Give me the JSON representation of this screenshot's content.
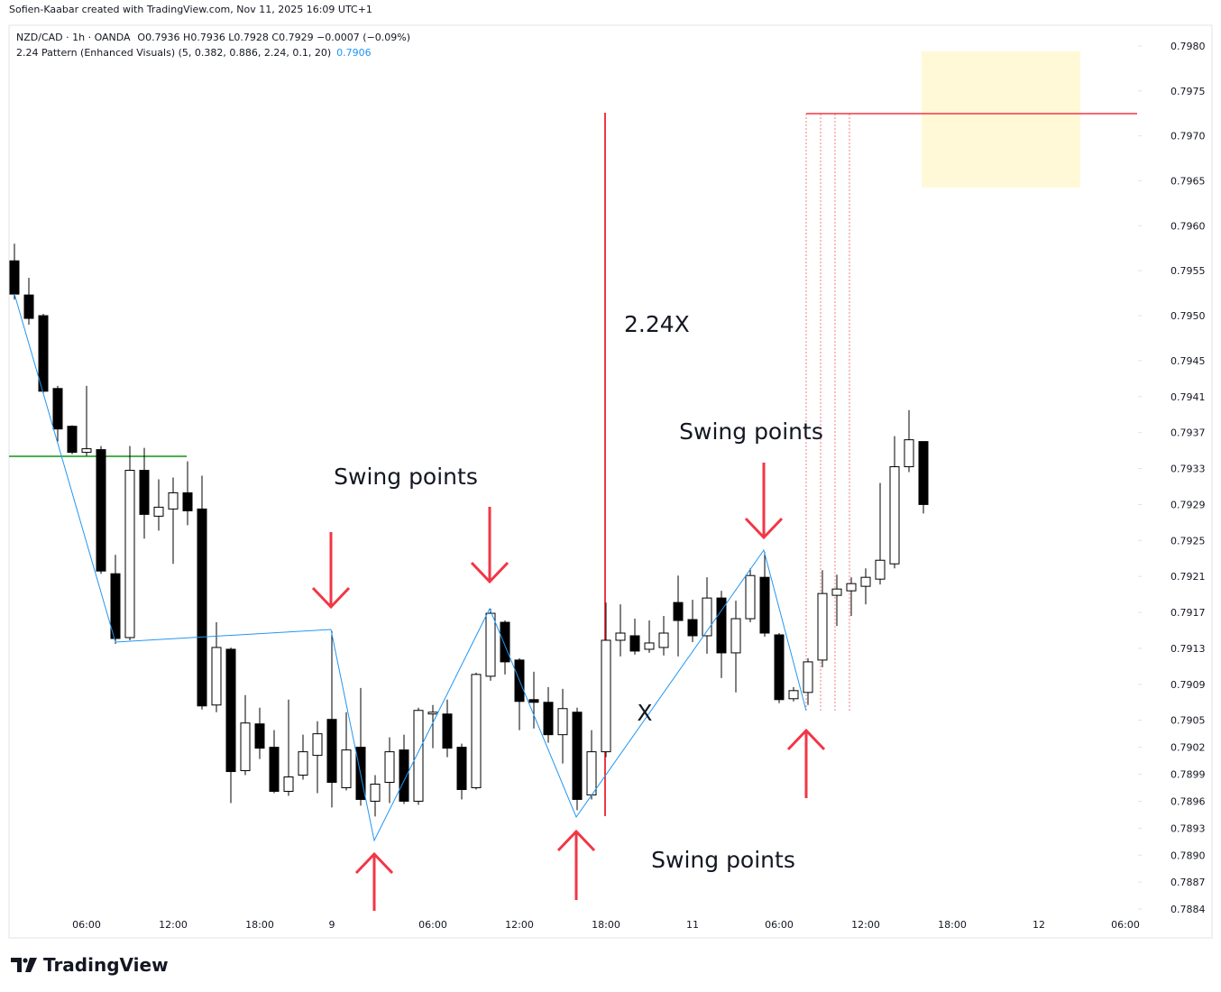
{
  "attribution": "Sofien-Kaabar created with TradingView.com, Nov 11, 2025 16:09 UTC+1",
  "brand": "TradingView",
  "chart_data": {
    "type": "candlestick",
    "symbol": "NZD/CAD · 1h · OANDA",
    "quote": "O0.7936 H0.7936 L0.7928 C0.7929 −0.0007 (−0.09%)",
    "indicator": "2.24 Pattern (Enhanced Visuals) (5, 0.382, 0.886, 2.24, 0.1, 20)",
    "indicator_value": "0.7906",
    "annotations": [
      "2.24X",
      "Swing points",
      "Swing points",
      "Swing points",
      "X"
    ],
    "up_color": "#ffffff",
    "down_color": "#000000",
    "wick_color": "#000000",
    "categories": [
      null,
      null,
      null,
      null,
      null,
      "06:00",
      null,
      null,
      null,
      null,
      null,
      "12:00",
      null,
      null,
      null,
      null,
      null,
      "18:00",
      null,
      null,
      null,
      null,
      "9",
      null,
      null,
      null,
      null,
      null,
      null,
      "06:00",
      null,
      null,
      null,
      null,
      null,
      "12:00",
      null,
      null,
      null,
      null,
      null,
      "18:00",
      null,
      null,
      null,
      null,
      null,
      "11",
      null,
      null,
      null,
      null,
      null,
      "06:00",
      null,
      null,
      null,
      null,
      null,
      "12:00",
      null,
      null,
      null,
      null,
      null,
      "18:00",
      null,
      null,
      null,
      null,
      null,
      "12",
      null,
      null,
      null,
      null,
      null,
      "06:00"
    ],
    "open": [
      0.79561,
      0.79523,
      0.795,
      0.79419,
      0.79377,
      0.79348,
      0.79351,
      0.79213,
      0.79142,
      0.79328,
      0.79277,
      0.79285,
      0.79303,
      0.79285,
      0.79067,
      0.79129,
      0.78994,
      0.79046,
      0.7902,
      0.78971,
      0.78989,
      0.79011,
      0.79051,
      0.78975,
      0.7902,
      0.7896,
      0.78981,
      0.79017,
      0.7896,
      0.79057,
      0.79057,
      0.7902,
      0.78975,
      0.79099,
      0.79159,
      0.79117,
      0.79073,
      0.7907,
      0.79034,
      0.79059,
      0.78967,
      0.79015,
      0.79139,
      0.79144,
      0.79129,
      0.79131,
      0.79181,
      0.79162,
      0.79144,
      0.79186,
      0.79125,
      0.79163,
      0.79209,
      0.79145,
      0.79074,
      0.79081,
      0.79117,
      0.79189,
      0.79194,
      0.79199,
      0.79207,
      0.79224,
      0.79332,
      0.7936,
      null,
      null,
      null,
      null,
      null,
      null,
      null,
      null,
      null,
      null,
      null,
      null,
      null,
      null
    ],
    "high": [
      0.7958,
      0.79542,
      0.79502,
      0.79422,
      0.79378,
      0.79422,
      0.79355,
      0.79234,
      0.79355,
      0.79353,
      0.79318,
      0.7932,
      0.79338,
      0.79322,
      0.79159,
      0.79131,
      0.79078,
      0.79064,
      0.79039,
      0.79073,
      0.79034,
      0.79049,
      0.79149,
      0.79059,
      0.79086,
      0.78989,
      0.79031,
      0.79034,
      0.79064,
      0.79067,
      0.79073,
      0.79024,
      0.79103,
      0.79174,
      0.79161,
      0.79119,
      0.79104,
      0.79087,
      0.79085,
      0.79064,
      0.79039,
      0.79181,
      0.79179,
      0.79163,
      0.79161,
      0.79166,
      0.79211,
      0.79184,
      0.79209,
      0.79194,
      0.79183,
      0.79219,
      0.79237,
      0.79147,
      0.79087,
      0.79119,
      0.79217,
      0.79212,
      0.79209,
      0.79219,
      0.79314,
      0.79366,
      0.79395,
      0.7936,
      null,
      null,
      null,
      null,
      null,
      null,
      null,
      null,
      null,
      null,
      null,
      null,
      null,
      null
    ],
    "low": [
      0.79518,
      0.7949,
      0.79414,
      0.7936,
      0.79346,
      0.79344,
      0.79213,
      0.79135,
      0.79139,
      0.79252,
      0.79261,
      0.79224,
      0.79267,
      0.79062,
      0.79059,
      0.78958,
      0.78989,
      0.79007,
      0.78969,
      0.78966,
      0.78984,
      0.78969,
      0.78953,
      0.78972,
      0.78955,
      0.78943,
      0.78958,
      0.78957,
      0.78956,
      0.79019,
      0.79009,
      0.78962,
      0.78973,
      0.79094,
      0.79101,
      0.79039,
      0.79041,
      0.79025,
      0.79002,
      0.7895,
      0.78962,
      0.79009,
      0.79121,
      0.79123,
      0.79125,
      0.79122,
      0.79121,
      0.79137,
      0.79124,
      0.79097,
      0.79081,
      0.79159,
      0.79143,
      0.79069,
      0.79071,
      0.79067,
      0.79109,
      0.79155,
      0.79166,
      0.79179,
      0.79201,
      0.79219,
      0.79326,
      0.7928,
      null,
      null,
      null,
      null,
      null,
      null,
      null,
      null,
      null,
      null,
      null,
      null,
      null,
      null
    ],
    "close": [
      0.79524,
      0.79497,
      0.79416,
      0.79374,
      0.79348,
      0.79352,
      0.79216,
      0.79141,
      0.79328,
      0.79279,
      0.79287,
      0.79303,
      0.79283,
      0.79066,
      0.79131,
      0.78993,
      0.79047,
      0.79019,
      0.78971,
      0.78987,
      0.79015,
      0.79035,
      0.78981,
      0.79017,
      0.78962,
      0.78979,
      0.79015,
      0.7896,
      0.79061,
      0.79059,
      0.79019,
      0.78973,
      0.79101,
      0.79169,
      0.79115,
      0.79071,
      0.7907,
      0.79034,
      0.79063,
      0.78962,
      0.79015,
      0.79139,
      0.79147,
      0.79127,
      0.79136,
      0.79147,
      0.79161,
      0.79144,
      0.79186,
      0.79125,
      0.79163,
      0.79211,
      0.79147,
      0.79073,
      0.79083,
      0.79115,
      0.79191,
      0.79196,
      0.79202,
      0.79209,
      0.79228,
      0.79332,
      0.79362,
      0.7929,
      null,
      null,
      null,
      null,
      null,
      null,
      null,
      null,
      null,
      null,
      null,
      null,
      null,
      null
    ],
    "ylim": [
      0.78808,
      0.79823
    ],
    "yticks": [
      {
        "value": 0.798,
        "label": "0.7980"
      },
      0.7975,
      {
        "value": 0.797,
        "label": "0.7970"
      },
      0.7965,
      {
        "value": 0.796,
        "label": "0.7960"
      },
      0.7955,
      {
        "value": 0.795,
        "label": "0.7950"
      },
      0.7945,
      0.7941,
      0.7937,
      0.7933,
      0.7929,
      0.7925,
      0.7921,
      0.7917,
      0.7913,
      0.7909,
      0.7905,
      0.7902,
      0.7899,
      0.7896,
      0.7893,
      {
        "value": 0.789,
        "label": "0.7890"
      },
      0.7887,
      0.7884
    ],
    "grid": false
  }
}
